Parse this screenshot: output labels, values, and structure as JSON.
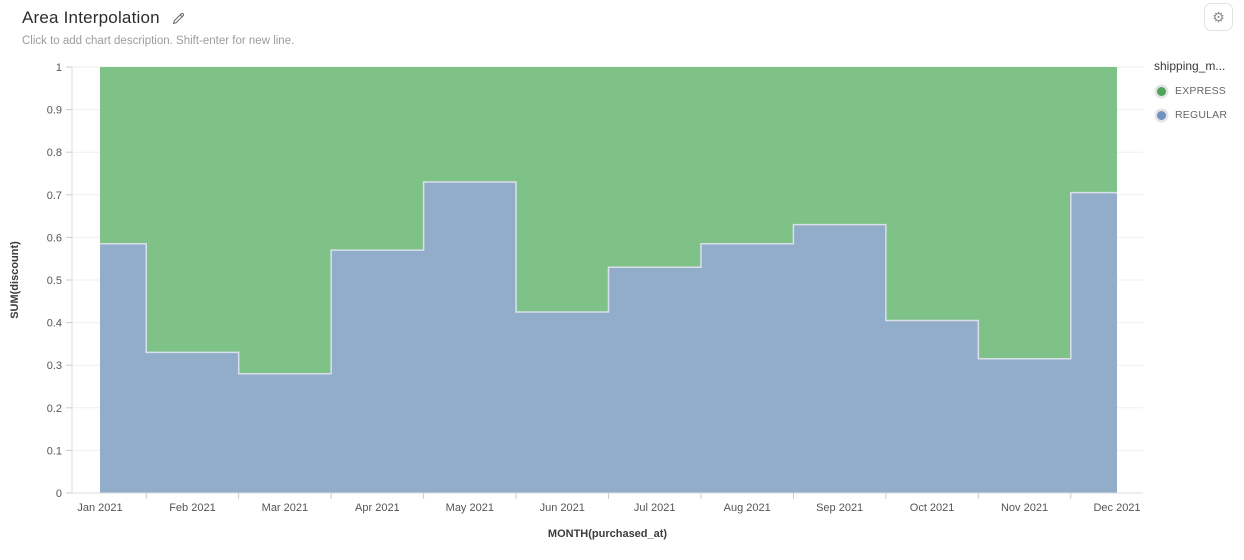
{
  "header": {
    "title": "Area Interpolation",
    "subtitle": "Click to add chart description. Shift-enter for new line.",
    "settings_icon": "gear-icon",
    "gear_glyph": "⚙"
  },
  "legend": {
    "title": "shipping_m...",
    "items": [
      {
        "label": "EXPRESS",
        "color": "#4fa45a"
      },
      {
        "label": "REGULAR",
        "color": "#7193c1"
      }
    ]
  },
  "chart_data": {
    "type": "area",
    "interpolation": "step-middle",
    "stacked": true,
    "title": "Area Interpolation",
    "xlabel": "MONTH(purchased_at)",
    "ylabel": "SUM(discount)",
    "ylim": [
      0,
      1
    ],
    "grid": true,
    "legend_position": "top-right",
    "y_tick_values": [
      0,
      0.1,
      0.2,
      0.3,
      0.4,
      0.5,
      0.6,
      0.7,
      0.8,
      0.9,
      1
    ],
    "y_tick_labels": [
      "0",
      "0.1",
      "0.2",
      "0.3",
      "0.4",
      "0.5",
      "0.6",
      "0.7",
      "0.8",
      "0.9",
      "1"
    ],
    "categories": [
      "Jan 2021",
      "Feb 2021",
      "Mar 2021",
      "Apr 2021",
      "May 2021",
      "Jun 2021",
      "Jul 2021",
      "Aug 2021",
      "Sep 2021",
      "Oct 2021",
      "Nov 2021",
      "Dec 2021"
    ],
    "series": [
      {
        "name": "REGULAR",
        "color": "#91adca",
        "edge_color": "#d9e0ea",
        "values": [
          0.585,
          0.33,
          0.28,
          0.57,
          0.73,
          0.425,
          0.53,
          0.585,
          0.63,
          0.405,
          0.315,
          0.705
        ]
      },
      {
        "name": "EXPRESS",
        "color": "#7fc287",
        "edge_color": "#7fc287",
        "values": [
          0.415,
          0.67,
          0.72,
          0.43,
          0.27,
          0.575,
          0.47,
          0.415,
          0.37,
          0.595,
          0.685,
          0.295
        ]
      }
    ],
    "colors": {
      "axis_line": "#dcdcdc",
      "gridline": "#efefef",
      "tick": "#cccccc",
      "tick_text": "#555555",
      "axis_title_text": "#3c3c3c"
    }
  }
}
